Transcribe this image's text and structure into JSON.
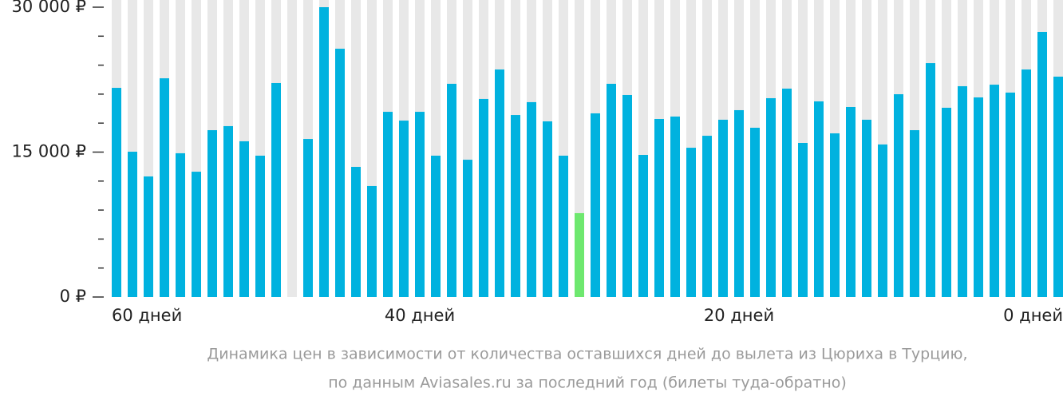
{
  "chart_data": {
    "type": "bar",
    "categories": [
      "60 дней",
      null,
      null,
      null,
      null,
      null,
      null,
      null,
      null,
      null,
      null,
      null,
      null,
      null,
      null,
      null,
      null,
      null,
      null,
      "40 дней",
      null,
      null,
      null,
      null,
      null,
      null,
      null,
      null,
      null,
      null,
      null,
      null,
      null,
      null,
      null,
      null,
      null,
      null,
      null,
      "20 дней",
      null,
      null,
      null,
      null,
      null,
      null,
      null,
      null,
      null,
      null,
      null,
      null,
      null,
      null,
      null,
      null,
      null,
      null,
      null,
      "0 дней"
    ],
    "values": [
      21650,
      15040,
      12480,
      22640,
      14880,
      12970,
      17270,
      17690,
      16120,
      14630,
      22150,
      null,
      16360,
      30000,
      25700,
      13470,
      11490,
      19170,
      18260,
      19170,
      14630,
      22070,
      14210,
      20500,
      23550,
      18840,
      20170,
      18180,
      14630,
      8680,
      19010,
      22070,
      20910,
      14710,
      18430,
      18680,
      15450,
      16690,
      18350,
      19340,
      17520,
      20580,
      21570,
      15950,
      20250,
      16940,
      19670,
      18350,
      15790,
      20990,
      17270,
      24210,
      19590,
      21820,
      20660,
      21980,
      21160,
      23550,
      27440,
      22810
    ],
    "color": "#00b2df",
    "highlight_color": "#6ee86f",
    "highlight": [
      false,
      false,
      false,
      false,
      false,
      false,
      false,
      false,
      false,
      false,
      false,
      false,
      false,
      false,
      false,
      false,
      false,
      false,
      false,
      false,
      false,
      false,
      false,
      false,
      false,
      false,
      false,
      false,
      false,
      true,
      false,
      false,
      false,
      false,
      false,
      false,
      false,
      false,
      false,
      false,
      false,
      false,
      false,
      false,
      false,
      false,
      false,
      false,
      false,
      false,
      false,
      false,
      false,
      false,
      false,
      false,
      false,
      false,
      false,
      false
    ],
    "ylim": [
      0,
      30000
    ],
    "yticks": [
      {
        "value": 0,
        "label": "0 ₽"
      },
      {
        "value": 15000,
        "label": "15 000 ₽"
      },
      {
        "value": 30000,
        "label": "30 000 ₽"
      }
    ],
    "yminorticks": [
      3000,
      6000,
      9000,
      12000,
      18000,
      21000,
      24000,
      27000
    ],
    "caption": [
      "Динамика цен в зависимости от количества оставшихся дней до вылета из Цюриха в Турцию,",
      "по данным Aviasales.ru за последний год (билеты туда-обратно)"
    ]
  }
}
